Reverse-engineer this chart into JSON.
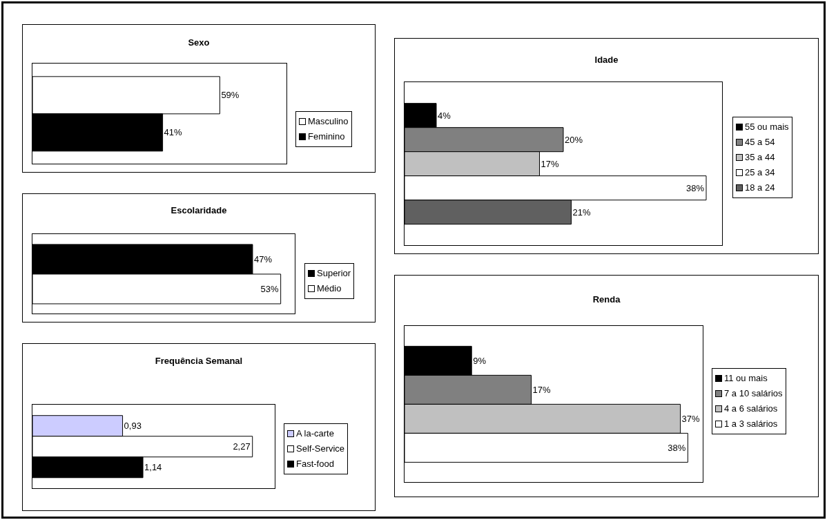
{
  "chart_data": [
    {
      "type": "bar",
      "orientation": "horizontal",
      "title": "Sexo",
      "categories": [
        null
      ],
      "xlim": [
        0,
        80
      ],
      "tick_labels": false,
      "legend": "right",
      "series": [
        {
          "name": "Masculino",
          "color": "#ffffff",
          "values": [
            59
          ],
          "value_labels": [
            "59%"
          ]
        },
        {
          "name": "Feminino",
          "color": "#000000",
          "values": [
            41
          ],
          "value_labels": [
            "41%"
          ]
        }
      ]
    },
    {
      "type": "bar",
      "orientation": "horizontal",
      "title": "Escolaridade",
      "categories": [
        null
      ],
      "xlim": [
        0,
        56
      ],
      "tick_labels": false,
      "legend": "right",
      "series": [
        {
          "name": "Superior",
          "color": "#000000",
          "values": [
            47
          ],
          "value_labels": [
            "47%"
          ]
        },
        {
          "name": "Médio",
          "color": "#ffffff",
          "values": [
            53
          ],
          "value_labels": [
            "53%"
          ]
        }
      ]
    },
    {
      "type": "bar",
      "orientation": "horizontal",
      "title": "Frequência Semanal",
      "categories": [
        null
      ],
      "xlim": [
        0,
        2.5
      ],
      "tick_labels": false,
      "legend": "right",
      "series": [
        {
          "name": "A la-carte",
          "color": "#ccccff",
          "values": [
            0.93
          ],
          "value_labels": [
            "0,93"
          ]
        },
        {
          "name": "Self-Service",
          "color": "#ffffff",
          "values": [
            2.27
          ],
          "value_labels": [
            "2,27"
          ]
        },
        {
          "name": "Fast-food",
          "color": "#000000",
          "values": [
            1.14
          ],
          "value_labels": [
            "1,14"
          ]
        }
      ]
    },
    {
      "type": "bar",
      "orientation": "horizontal",
      "title": "Idade",
      "categories": [
        null
      ],
      "xlim": [
        0,
        40
      ],
      "tick_labels": false,
      "legend": "right",
      "series": [
        {
          "name": "55 ou mais",
          "color": "#000000",
          "values": [
            4
          ],
          "value_labels": [
            "4%"
          ]
        },
        {
          "name": "45 a 54",
          "color": "#808080",
          "values": [
            20
          ],
          "value_labels": [
            "20%"
          ]
        },
        {
          "name": "35 a 44",
          "color": "#c0c0c0",
          "values": [
            17
          ],
          "value_labels": [
            "17%"
          ]
        },
        {
          "name": "25 a 34",
          "color": "#ffffff",
          "values": [
            38
          ],
          "value_labels": [
            "38%"
          ]
        },
        {
          "name": "18 a 24",
          "color": "#606060",
          "values": [
            21
          ],
          "value_labels": [
            "21%"
          ]
        }
      ]
    },
    {
      "type": "bar",
      "orientation": "horizontal",
      "title": "Renda",
      "categories": [
        null
      ],
      "xlim": [
        0,
        40
      ],
      "tick_labels": false,
      "legend": "right",
      "series": [
        {
          "name": "11 ou mais",
          "color": "#000000",
          "values": [
            9
          ],
          "value_labels": [
            "9%"
          ]
        },
        {
          "name": "7 a 10 salários",
          "color": "#808080",
          "values": [
            17
          ],
          "value_labels": [
            "17%"
          ]
        },
        {
          "name": "4 a 6 salários",
          "color": "#c0c0c0",
          "values": [
            37
          ],
          "value_labels": [
            "37%"
          ]
        },
        {
          "name": "1 a 3 salários",
          "color": "#ffffff",
          "values": [
            38
          ],
          "value_labels": [
            "38%"
          ]
        }
      ]
    }
  ]
}
